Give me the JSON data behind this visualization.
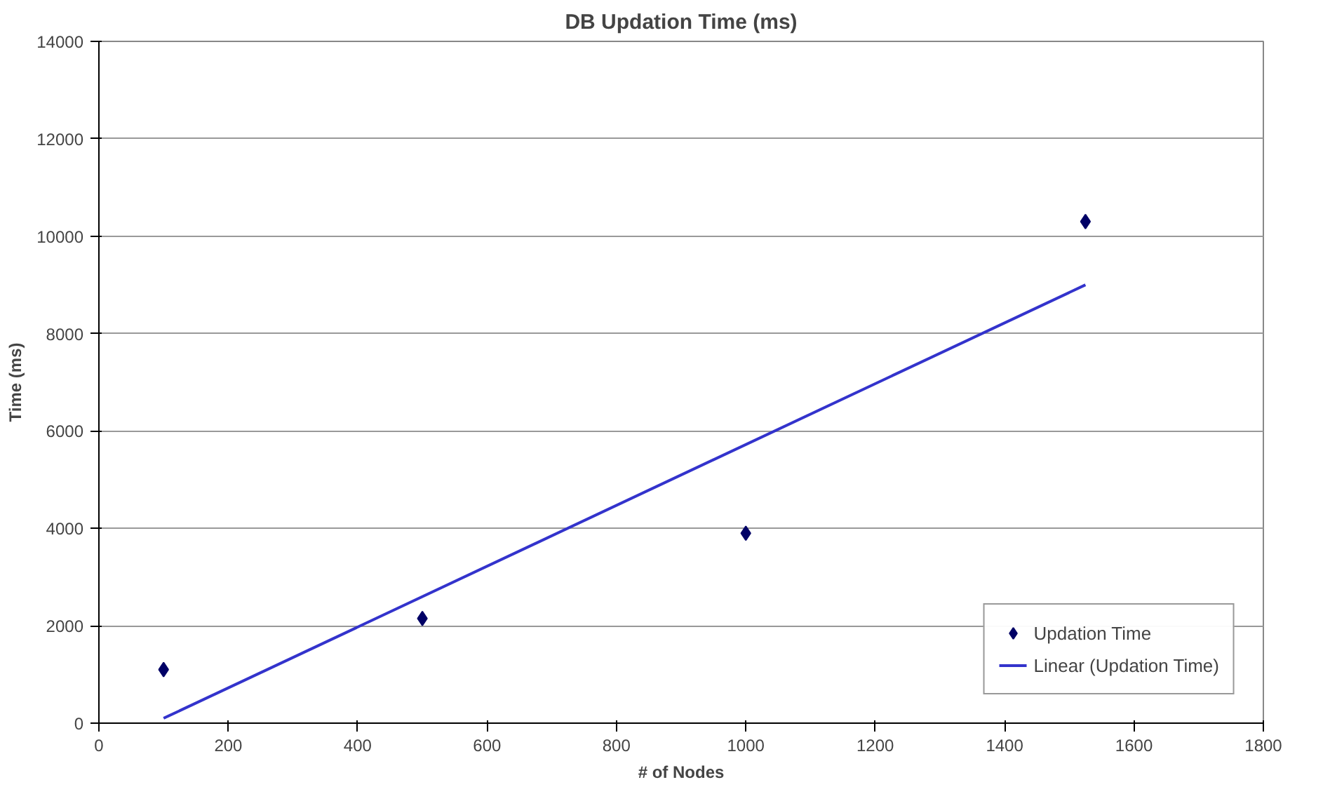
{
  "chart_data": {
    "type": "scatter",
    "title": "DB Updation Time (ms)",
    "xlabel": "# of Nodes",
    "ylabel": "Time (ms)",
    "xlim": [
      0,
      1800
    ],
    "xticks": [
      0,
      200,
      400,
      600,
      800,
      1000,
      1200,
      1400,
      1600,
      1800
    ],
    "ylim": [
      0,
      14000
    ],
    "yticks": [
      0,
      2000,
      4000,
      6000,
      8000,
      10000,
      12000,
      14000
    ],
    "grid": "y",
    "legend": "bottom right",
    "series": [
      {
        "name": "Updation Time",
        "marker": "diamond",
        "color": "#000066",
        "x": [
          100,
          500,
          1000,
          1525
        ],
        "values": [
          1100,
          2150,
          3900,
          10300
        ]
      },
      {
        "name": "Linear (Updation Time)",
        "type": "line",
        "line_style": "solid",
        "color": "#3333cc",
        "x": [
          100,
          1525
        ],
        "values": [
          100,
          9000
        ]
      }
    ]
  }
}
